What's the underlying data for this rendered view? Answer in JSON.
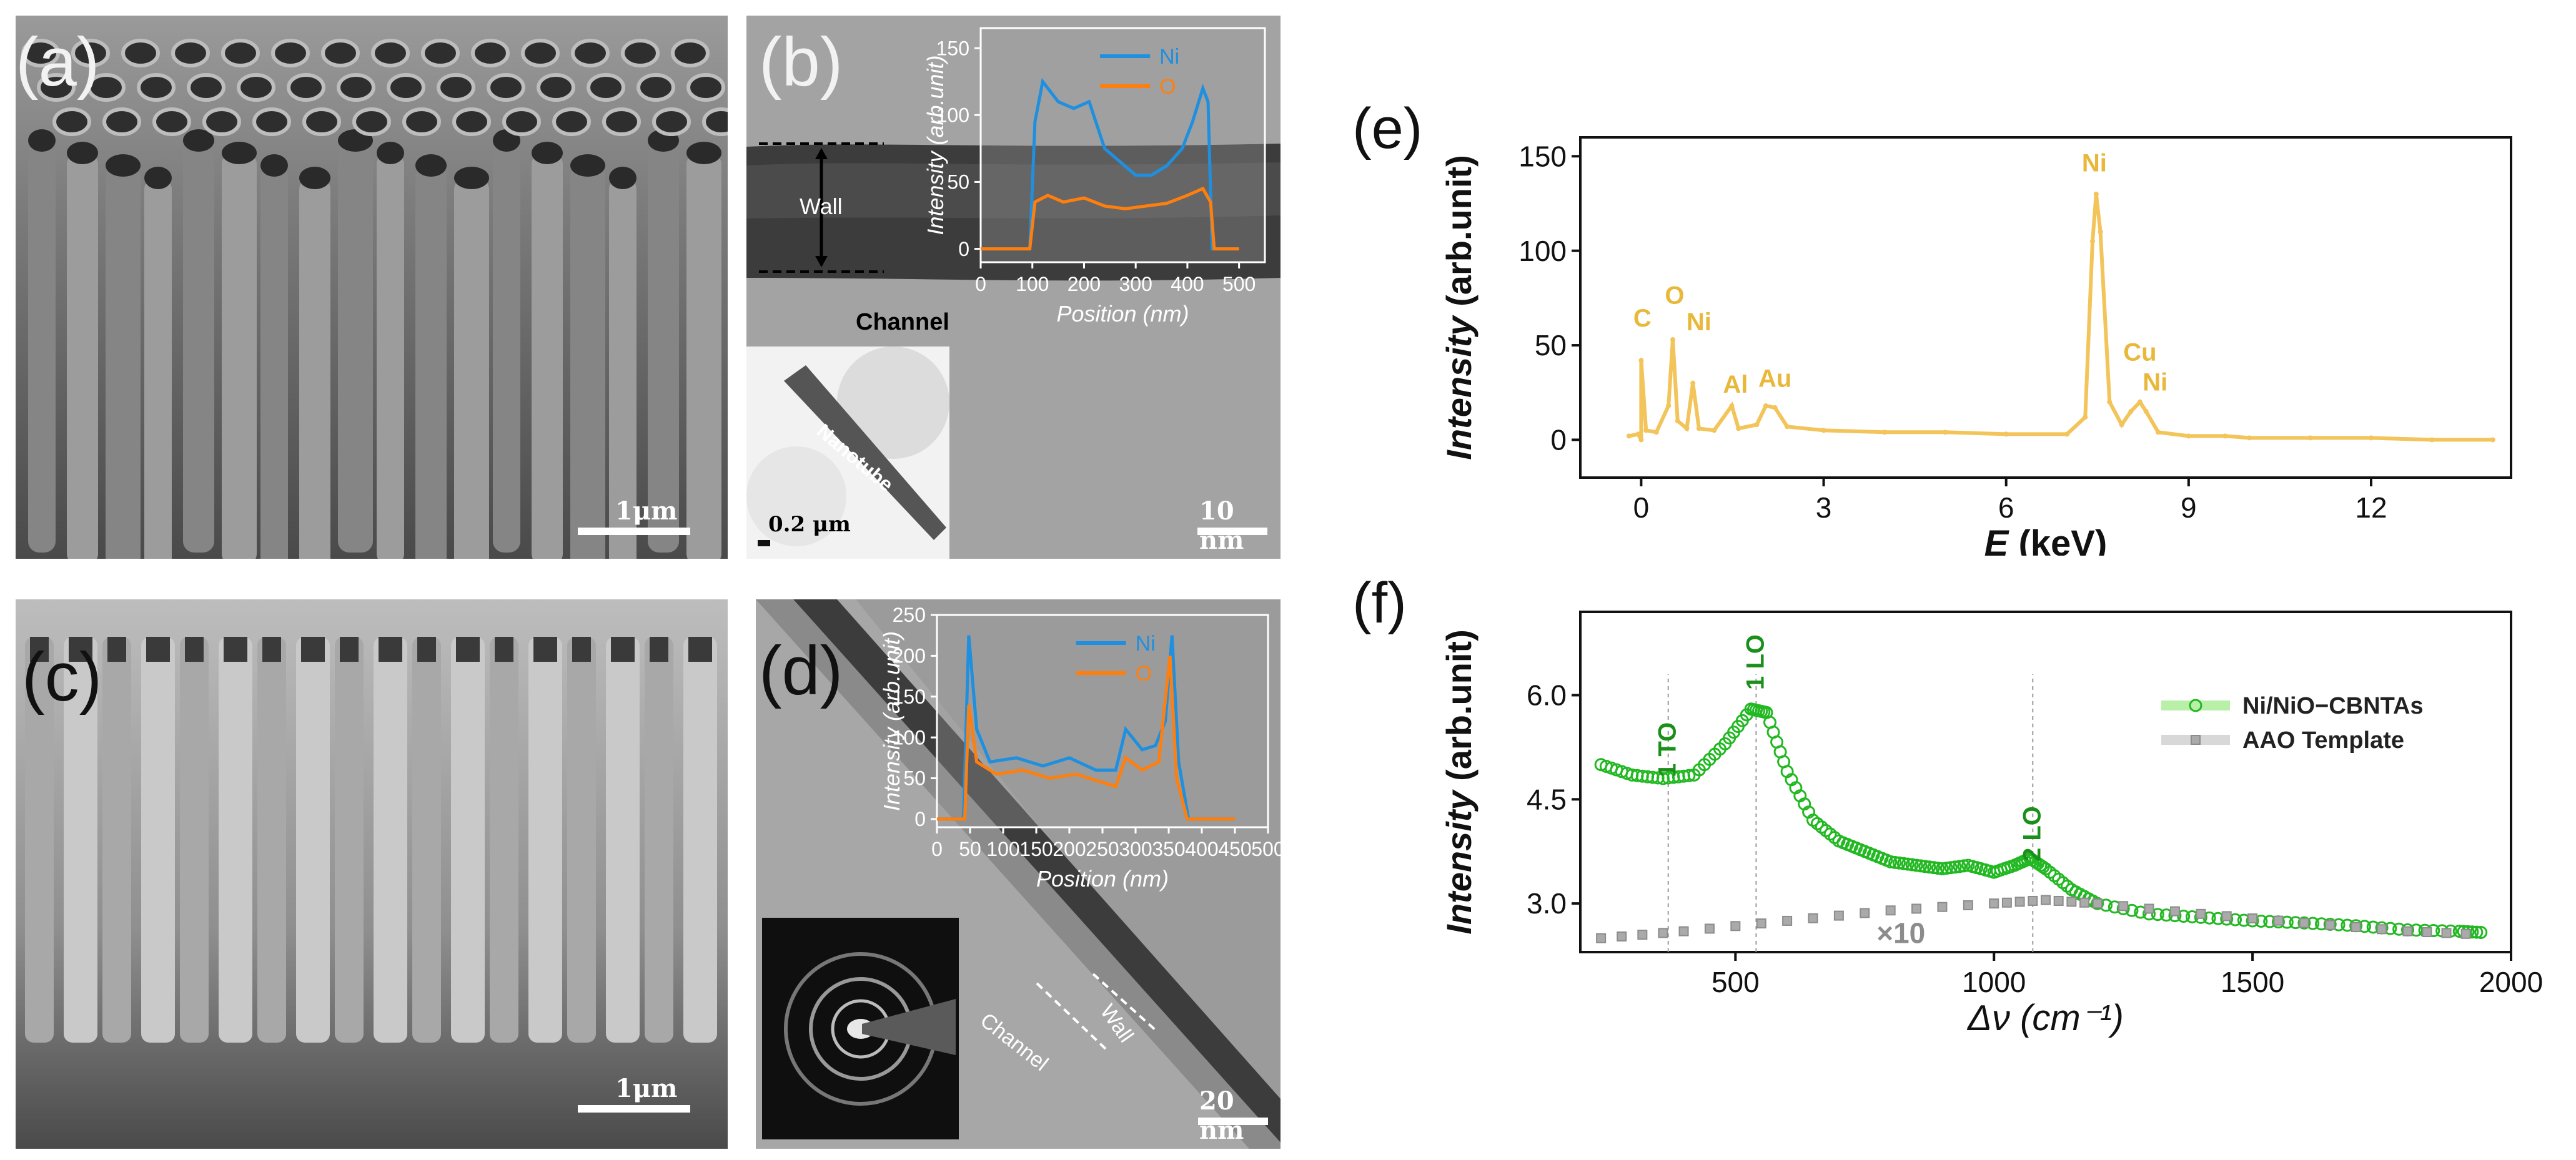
{
  "panels": {
    "a": {
      "label": "(a)",
      "scale": "1μm"
    },
    "b": {
      "label": "(b)",
      "scale": "10 nm",
      "wall_label": "Wall",
      "channel_label": "Channel",
      "inset_label": "Nanotube",
      "inset_scale": "0.2 μm"
    },
    "c": {
      "label": "(c)",
      "scale": "1μm"
    },
    "d": {
      "label": "(d)",
      "scale": "20 nm",
      "wall_label": "Wall",
      "channel_label": "Channel"
    },
    "e": {
      "label": "(e)"
    },
    "f": {
      "label": "(f)"
    }
  },
  "chart_data": [
    {
      "id": "b-inset",
      "type": "line",
      "xlabel": "Position (nm)",
      "ylabel": "Intensity (arb.unit)",
      "xlim": [
        0,
        550
      ],
      "ylim": [
        -10,
        165
      ],
      "xticks": [
        0,
        100,
        200,
        300,
        400,
        500
      ],
      "yticks": [
        0,
        50,
        100,
        150
      ],
      "legend": "top-center",
      "colors": {
        "Ni": "#1f8fe0",
        "O": "#ff7f0e"
      },
      "series": [
        {
          "name": "Ni",
          "points": [
            [
              0,
              0
            ],
            [
              95,
              0
            ],
            [
              105,
              95
            ],
            [
              120,
              125
            ],
            [
              150,
              110
            ],
            [
              180,
              105
            ],
            [
              210,
              110
            ],
            [
              240,
              75
            ],
            [
              270,
              65
            ],
            [
              300,
              55
            ],
            [
              330,
              55
            ],
            [
              360,
              62
            ],
            [
              390,
              75
            ],
            [
              410,
              95
            ],
            [
              430,
              120
            ],
            [
              440,
              110
            ],
            [
              448,
              0
            ],
            [
              500,
              0
            ]
          ]
        },
        {
          "name": "O",
          "points": [
            [
              0,
              0
            ],
            [
              95,
              0
            ],
            [
              105,
              35
            ],
            [
              130,
              40
            ],
            [
              160,
              35
            ],
            [
              200,
              38
            ],
            [
              240,
              32
            ],
            [
              280,
              30
            ],
            [
              320,
              32
            ],
            [
              360,
              34
            ],
            [
              400,
              40
            ],
            [
              430,
              45
            ],
            [
              445,
              35
            ],
            [
              452,
              0
            ],
            [
              500,
              0
            ]
          ]
        }
      ]
    },
    {
      "id": "d-inset",
      "type": "line",
      "xlabel": "Position (nm)",
      "ylabel": "Intensity (arb.unit)",
      "xlim": [
        0,
        500
      ],
      "ylim": [
        -10,
        250
      ],
      "xticks": [
        0,
        50,
        100,
        150,
        200,
        250,
        300,
        350,
        400,
        450,
        500
      ],
      "yticks": [
        0,
        50,
        100,
        150,
        200,
        250
      ],
      "legend": "top-center",
      "colors": {
        "Ni": "#1f8fe0",
        "O": "#ff7f0e"
      },
      "series": [
        {
          "name": "Ni",
          "points": [
            [
              0,
              0
            ],
            [
              40,
              0
            ],
            [
              48,
              225
            ],
            [
              60,
              110
            ],
            [
              80,
              70
            ],
            [
              120,
              75
            ],
            [
              160,
              65
            ],
            [
              200,
              75
            ],
            [
              240,
              60
            ],
            [
              270,
              60
            ],
            [
              285,
              110
            ],
            [
              310,
              85
            ],
            [
              330,
              90
            ],
            [
              345,
              120
            ],
            [
              355,
              225
            ],
            [
              365,
              70
            ],
            [
              380,
              0
            ],
            [
              450,
              0
            ]
          ]
        },
        {
          "name": "O",
          "points": [
            [
              0,
              0
            ],
            [
              42,
              0
            ],
            [
              48,
              140
            ],
            [
              60,
              70
            ],
            [
              90,
              55
            ],
            [
              130,
              60
            ],
            [
              170,
              50
            ],
            [
              210,
              55
            ],
            [
              250,
              45
            ],
            [
              270,
              40
            ],
            [
              285,
              75
            ],
            [
              310,
              60
            ],
            [
              335,
              70
            ],
            [
              352,
              200
            ],
            [
              362,
              50
            ],
            [
              378,
              0
            ],
            [
              450,
              0
            ]
          ]
        }
      ]
    },
    {
      "id": "e",
      "type": "line",
      "title": "",
      "xlabel_italic": "E",
      "xlabel_rest": " (keV)",
      "ylabel_italic": "Intensity",
      "ylabel_rest": " (arb.unit)",
      "xlim": [
        -1,
        14.3
      ],
      "ylim": [
        -20,
        160
      ],
      "xticks": [
        0,
        3,
        6,
        9,
        12
      ],
      "yticks": [
        0,
        50,
        100,
        150
      ],
      "color": "#f2c45a",
      "series": [
        {
          "name": "EDS",
          "points": [
            [
              0,
              0
            ],
            [
              -0.2,
              2
            ],
            [
              -0.05,
              3
            ],
            [
              0,
              42
            ],
            [
              0.08,
              5
            ],
            [
              0.25,
              4
            ],
            [
              0.45,
              18
            ],
            [
              0.52,
              53
            ],
            [
              0.6,
              10
            ],
            [
              0.75,
              6
            ],
            [
              0.85,
              30
            ],
            [
              0.95,
              6
            ],
            [
              1.2,
              5
            ],
            [
              1.49,
              18
            ],
            [
              1.6,
              6
            ],
            [
              1.9,
              8
            ],
            [
              2.05,
              18
            ],
            [
              2.2,
              17
            ],
            [
              2.4,
              7
            ],
            [
              3,
              5
            ],
            [
              4,
              4
            ],
            [
              5,
              4
            ],
            [
              6,
              3
            ],
            [
              7,
              3
            ],
            [
              7.3,
              12
            ],
            [
              7.42,
              105
            ],
            [
              7.48,
              130
            ],
            [
              7.55,
              110
            ],
            [
              7.7,
              20
            ],
            [
              7.9,
              8
            ],
            [
              8.05,
              15
            ],
            [
              8.2,
              20
            ],
            [
              8.3,
              15
            ],
            [
              8.5,
              4
            ],
            [
              9,
              2
            ],
            [
              9.6,
              2
            ],
            [
              10,
              1
            ],
            [
              11,
              1
            ],
            [
              12,
              1
            ],
            [
              13,
              0
            ],
            [
              14,
              0
            ]
          ]
        }
      ],
      "annotations": [
        {
          "text": "C",
          "x": 0.02,
          "y": 60
        },
        {
          "text": "O",
          "x": 0.55,
          "y": 72
        },
        {
          "text": "Ni",
          "x": 0.95,
          "y": 58
        },
        {
          "text": "Al",
          "x": 1.55,
          "y": 25
        },
        {
          "text": "Au",
          "x": 2.2,
          "y": 28
        },
        {
          "text": "Ni",
          "x": 7.45,
          "y": 142
        },
        {
          "text": "Cu",
          "x": 8.2,
          "y": 42
        },
        {
          "text": "Ni",
          "x": 8.45,
          "y": 26
        }
      ]
    },
    {
      "id": "f",
      "type": "scatter",
      "xlabel": "Δν (cm⁻¹)",
      "ylabel_italic": "Intensity",
      "ylabel_rest": " (arb.unit)",
      "xlim": [
        200,
        2000
      ],
      "ylim": [
        2.3,
        7.2
      ],
      "xticks": [
        500,
        1000,
        1500,
        2000
      ],
      "yticks": [
        3.0,
        4.5,
        6.0
      ],
      "ytick_labels": [
        "3.0",
        "4.5",
        "6.0"
      ],
      "legend": "right",
      "series": [
        {
          "name": "Ni/NiO−CBNTAs",
          "color": "#22b822",
          "points": [
            [
              240,
              5.0
            ],
            [
              300,
              4.85
            ],
            [
              360,
              4.8
            ],
            [
              420,
              4.85
            ],
            [
              480,
              5.3
            ],
            [
              530,
              5.8
            ],
            [
              560,
              5.75
            ],
            [
              600,
              4.9
            ],
            [
              650,
              4.2
            ],
            [
              700,
              3.9
            ],
            [
              750,
              3.75
            ],
            [
              800,
              3.6
            ],
            [
              850,
              3.55
            ],
            [
              900,
              3.5
            ],
            [
              950,
              3.55
            ],
            [
              1000,
              3.45
            ],
            [
              1040,
              3.55
            ],
            [
              1070,
              3.65
            ],
            [
              1100,
              3.5
            ],
            [
              1150,
              3.2
            ],
            [
              1200,
              3.0
            ],
            [
              1300,
              2.85
            ],
            [
              1400,
              2.8
            ],
            [
              1500,
              2.75
            ],
            [
              1600,
              2.72
            ],
            [
              1700,
              2.68
            ],
            [
              1800,
              2.62
            ],
            [
              1900,
              2.6
            ],
            [
              1950,
              2.58
            ]
          ]
        },
        {
          "name": "AAO Template",
          "color": "#8c8c8c",
          "points": [
            [
              240,
              2.5
            ],
            [
              400,
              2.6
            ],
            [
              600,
              2.75
            ],
            [
              800,
              2.9
            ],
            [
              1000,
              3.0
            ],
            [
              1100,
              3.05
            ],
            [
              1200,
              3.0
            ],
            [
              1400,
              2.85
            ],
            [
              1600,
              2.72
            ],
            [
              1800,
              2.6
            ],
            [
              1950,
              2.55
            ]
          ]
        }
      ],
      "annotations": [
        {
          "text": "1 TO",
          "x": 370,
          "color": "#1a8f1a"
        },
        {
          "text": "1 LO",
          "x": 540,
          "color": "#1a8f1a"
        },
        {
          "text": "2 LO",
          "x": 1075,
          "color": "#1a8f1a"
        },
        {
          "text": "×10",
          "x": 820,
          "y": 2.7,
          "color": "#8c8c8c"
        }
      ]
    }
  ]
}
